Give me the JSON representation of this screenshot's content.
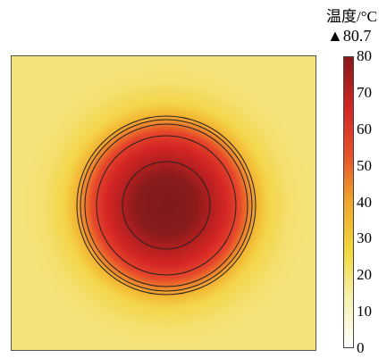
{
  "chart_data": {
    "type": "heatmap",
    "title": "",
    "colorbar": {
      "label": "温度/°C",
      "max_marker_symbol": "▲",
      "max_value": "80.7",
      "ticks": [
        "80",
        "70",
        "60",
        "50",
        "40",
        "30",
        "20",
        "10",
        "0"
      ],
      "range": [
        0,
        80
      ],
      "colors": [
        "#ffffff",
        "#f6f2b0",
        "#f2d83a",
        "#f0a62a",
        "#e8502a",
        "#d02424",
        "#8a1818"
      ]
    },
    "field": {
      "shape": "radial",
      "background_value": 30,
      "peak_value": 80.7,
      "contour_values": [
        80,
        60,
        40,
        36,
        33
      ]
    }
  }
}
